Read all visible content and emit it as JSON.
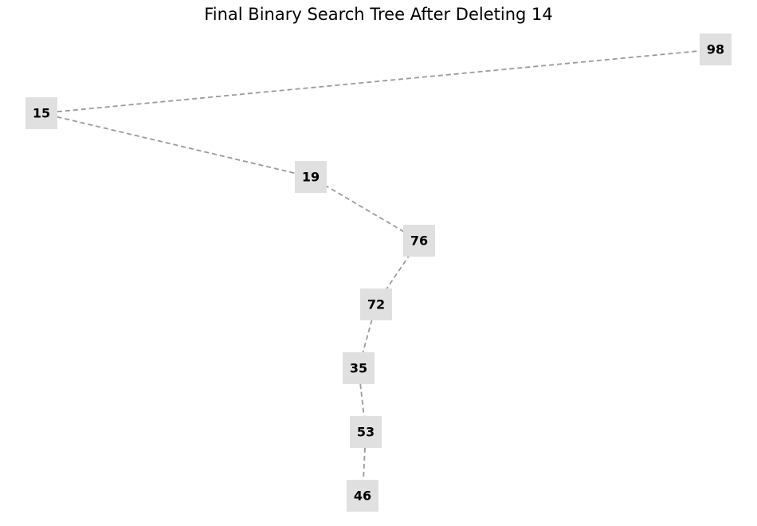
{
  "title": "Final Binary Search Tree After Deleting 14",
  "colors": {
    "node_fill": "#e0e0e0",
    "edge": "#9a9a9a",
    "text": "#000000"
  },
  "tree": {
    "nodes": [
      "98",
      "15",
      "19",
      "76",
      "72",
      "35",
      "53",
      "46"
    ],
    "edges": [
      [
        "15",
        "98"
      ],
      [
        "15",
        "19"
      ],
      [
        "19",
        "76"
      ],
      [
        "76",
        "72"
      ],
      [
        "72",
        "35"
      ],
      [
        "35",
        "53"
      ],
      [
        "53",
        "46"
      ]
    ]
  }
}
